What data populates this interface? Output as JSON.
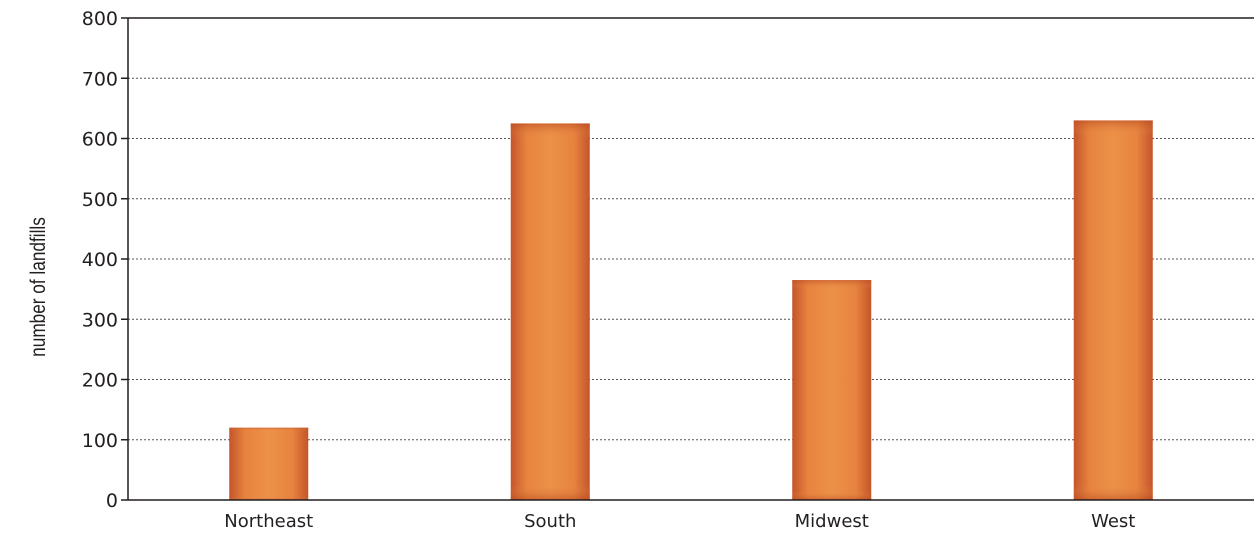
{
  "chart_data": {
    "type": "bar",
    "title": "",
    "xlabel": "",
    "ylabel": "number of landfills",
    "categories": [
      "Northeast",
      "South",
      "Midwest",
      "West"
    ],
    "values": [
      120,
      625,
      365,
      630
    ],
    "ylim": [
      0,
      800
    ],
    "yticks": [
      0,
      100,
      200,
      300,
      400,
      500,
      600,
      700,
      800
    ],
    "grid": true,
    "grid_style": "dotted",
    "legend": "none",
    "colors": {
      "bar_center": "#ec9148",
      "bar_edge": "#c4552a",
      "axis": "#231f20",
      "grid": "#555555"
    }
  }
}
